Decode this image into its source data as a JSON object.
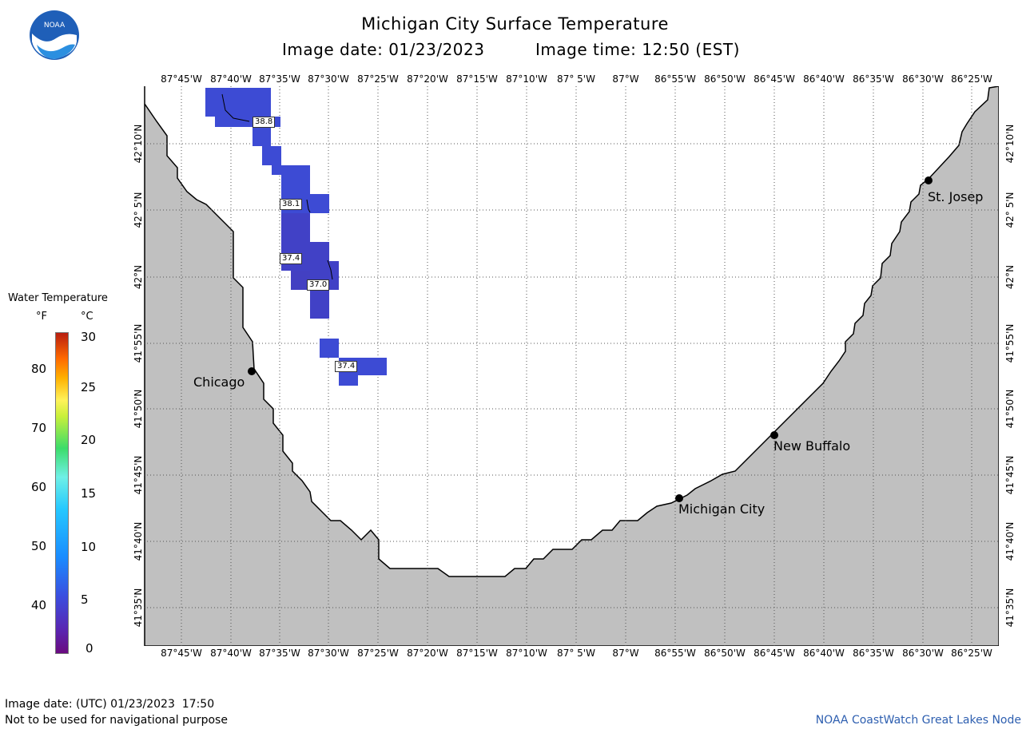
{
  "header": {
    "title": "Michigan City Surface Temperature",
    "image_date": "Image date: 01/23/2023",
    "image_time": "Image time: 12:50 (EST)"
  },
  "logo": {
    "text": "NOAA",
    "icon": "noaa-logo-icon"
  },
  "legend": {
    "title": "Water Temperature",
    "unit_f": "°F",
    "unit_c": "°C",
    "f_ticks": [
      "80",
      "70",
      "60",
      "50",
      "40"
    ],
    "c_ticks": [
      "30",
      "25",
      "20",
      "15",
      "10",
      "5",
      "0"
    ],
    "c_range": [
      0,
      30
    ]
  },
  "map": {
    "lon_labels": [
      "87°45'W",
      "87°40'W",
      "87°35'W",
      "87°30'W",
      "87°25'W",
      "87°20'W",
      "87°15'W",
      "87°10'W",
      "87° 5'W",
      "87°W",
      "86°55'W",
      "86°50'W",
      "86°45'W",
      "86°40'W",
      "86°35'W",
      "86°30'W",
      "86°25'W"
    ],
    "lat_labels": [
      "42°10'N",
      "42° 5'N",
      "42°N",
      "41°55'N",
      "41°50'N",
      "41°45'N",
      "41°40'N",
      "41°35'N"
    ],
    "colors": {
      "land": "#c0c0c0",
      "water": "#ffffff",
      "sst": "#3b4fd6",
      "sst_dark": "#4438c0"
    },
    "temperature_readings": [
      "38.8",
      "38.1",
      "37.4",
      "37.0",
      "37.4"
    ],
    "cities": [
      "Chicago",
      "Michigan City",
      "New Buffalo",
      "St. Josep"
    ]
  },
  "footer": {
    "utc_date": "Image date: (UTC) 01/23/2023  17:50",
    "disclaimer": "Not to be used for navigational purpose",
    "credit": "NOAA CoastWatch Great Lakes Node"
  }
}
